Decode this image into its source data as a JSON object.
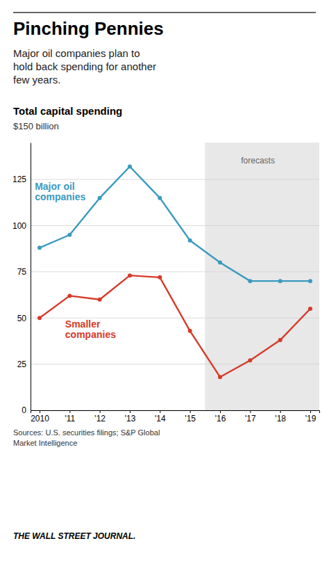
{
  "chart_data": {
    "type": "line",
    "title": "Pinching Pennies",
    "subtitle": "Major oil companies plan to\nhold back spending for another\nfew years.",
    "chart_label": "Total capital spending",
    "y_label": "$150 billion",
    "x": [
      2010,
      2011,
      2012,
      2013,
      2014,
      2015,
      2016,
      2017,
      2018,
      2019
    ],
    "series": [
      {
        "name": "Major oil\ncompanies",
        "color": "#3a9abf",
        "marker": "circle",
        "values": [
          88,
          95,
          115,
          132,
          115,
          92,
          80,
          70,
          70,
          70
        ]
      },
      {
        "name": "Smaller\ncompanies",
        "color": "#d63a2a",
        "marker": "circle",
        "values": [
          50,
          62,
          60,
          73,
          72,
          43,
          18,
          27,
          38,
          55
        ]
      }
    ],
    "xlim": [
      2009.7,
      2019.3
    ],
    "xticks": [
      2010,
      {
        "value": 2011,
        "label": "'11"
      },
      {
        "value": 2012,
        "label": "'12"
      },
      {
        "value": 2013,
        "label": "'13"
      },
      {
        "value": 2014,
        "label": "'14"
      },
      {
        "value": 2015,
        "label": "'15"
      },
      {
        "value": 2016,
        "label": "'16"
      },
      {
        "value": 2017,
        "label": "'17"
      },
      {
        "value": 2018,
        "label": "'18"
      },
      {
        "value": 2019,
        "label": "'19"
      }
    ],
    "ylim": [
      0,
      145
    ],
    "yticks": [
      0,
      25,
      50,
      75,
      100,
      125
    ],
    "grid": true,
    "forecast": {
      "label": "forecasts",
      "from": 2015.5,
      "color": "#e8e8e8"
    },
    "sources": "Sources: U.S. securities filings; S&P Global\nMarket Intelligence",
    "footer": "THE WALL STREET JOURNAL."
  }
}
